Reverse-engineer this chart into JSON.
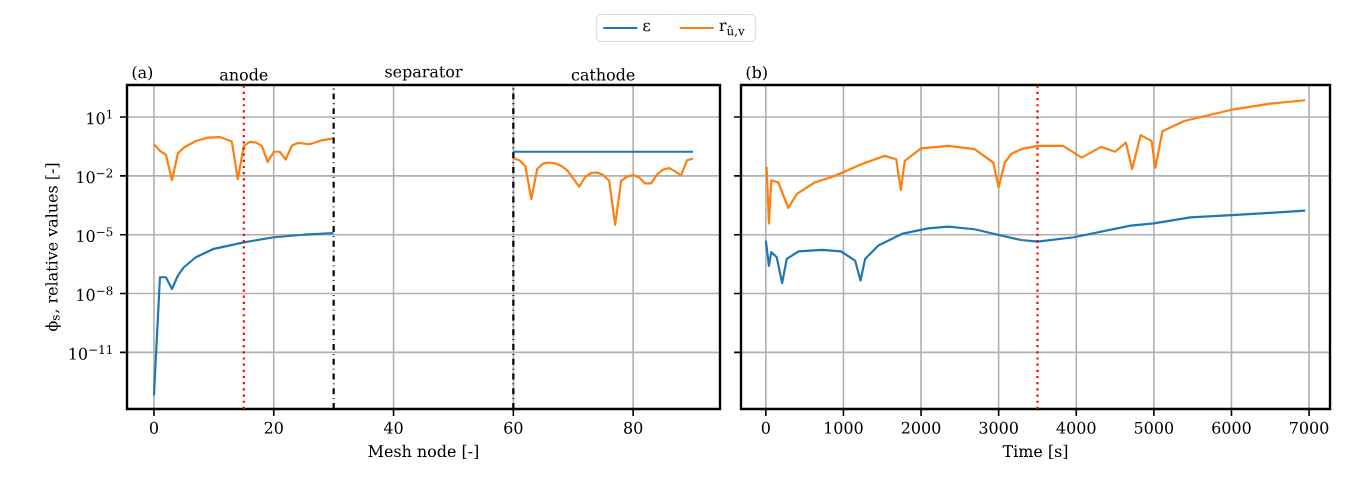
{
  "chart_data": [
    {
      "type": "line",
      "title": "(a)",
      "xlabel": "Mesh node [-]",
      "ylabel": "ϕ$_{s}$, relative values [-]",
      "log": "y",
      "grid": true,
      "legend": "top",
      "xlim": [
        -4.5,
        94.5
      ],
      "ylim": [
        1.3e-14,
        430
      ],
      "xticks": [
        0,
        20,
        40,
        60,
        80
      ],
      "yticks": [
        {
          "value": 10,
          "label": "10$^{1}$"
        },
        {
          "value": 0.01,
          "label": "10$^{−2}$"
        },
        {
          "value": 1e-05,
          "label": "10$^{−5}$"
        },
        {
          "value": 1e-08,
          "label": "10$^{−8}$"
        },
        {
          "value": 1e-11,
          "label": "10$^{−11}$"
        }
      ],
      "ref_lines": [
        {
          "axis": "x",
          "value": 15,
          "color": "#ff0000",
          "line_style": "dotted"
        },
        {
          "axis": "x",
          "value": 30,
          "color": "#000000",
          "line_style": "dashdot"
        },
        {
          "axis": "x",
          "value": 60,
          "color": "#000000",
          "line_style": "dashdot"
        }
      ],
      "annotations": [
        "anode",
        "separator",
        "cathode"
      ],
      "series": [
        {
          "name": "ε",
          "color": "#1f77b4",
          "x": [
            0,
            1,
            2,
            3,
            4,
            5,
            7,
            10,
            15,
            20,
            25,
            30,
            45,
            60,
            90
          ],
          "values": [
            6.3e-14,
            6.8e-08,
            6.8e-08,
            1.7e-08,
            8.3e-08,
            2.2e-07,
            7.1e-07,
            1.9e-06,
            4.1e-06,
            7.4e-06,
            1e-05,
            1.2e-05,
            null,
            0.17,
            0.17
          ]
        },
        {
          "name": "r$_{û,v}$",
          "color": "#ff7f0e",
          "x": [
            0,
            1,
            2,
            3,
            4,
            5,
            7,
            9,
            11,
            13,
            14,
            15,
            16,
            17,
            18,
            19,
            20,
            21,
            22,
            23,
            24,
            26,
            28,
            30,
            45,
            60,
            61,
            62,
            63,
            64,
            65,
            66,
            67,
            68,
            69,
            70,
            71,
            72,
            73,
            74,
            75,
            76,
            77,
            78,
            79,
            80,
            81,
            82,
            83,
            84,
            85,
            86,
            87,
            88,
            89,
            90
          ],
          "values": [
            0.41,
            0.19,
            0.12,
            0.006,
            0.14,
            0.28,
            0.6,
            0.89,
            0.95,
            0.56,
            0.0068,
            0.34,
            0.54,
            0.51,
            0.34,
            0.051,
            0.17,
            0.17,
            0.068,
            0.34,
            0.48,
            0.41,
            0.65,
            0.81,
            null,
            0.079,
            0.063,
            0.032,
            0.00065,
            0.023,
            0.043,
            0.048,
            0.043,
            0.032,
            0.019,
            0.0072,
            0.0028,
            0.0089,
            0.014,
            0.015,
            0.011,
            0.0056,
            3.2e-05,
            0.0056,
            0.0093,
            0.011,
            0.0083,
            0.0041,
            0.0041,
            0.012,
            0.021,
            0.025,
            0.017,
            0.0105,
            0.063,
            0.076
          ]
        }
      ]
    },
    {
      "type": "line",
      "title": "(b)",
      "xlabel": "Time [s]",
      "log": "y",
      "grid": true,
      "tick_labels": "x",
      "xlim": [
        -320,
        7270
      ],
      "ylim": [
        1.3e-14,
        430
      ],
      "xticks": [
        0,
        1000,
        2000,
        3000,
        4000,
        5000,
        6000,
        7000
      ],
      "yticks": [
        {
          "value": 10,
          "label": null
        },
        {
          "value": 0.01,
          "label": null
        },
        {
          "value": 1e-05,
          "label": null
        },
        {
          "value": 1e-08,
          "label": null
        },
        {
          "value": 1e-11,
          "label": null
        }
      ],
      "ref_lines": [
        {
          "axis": "x",
          "value": 3500,
          "color": "#ff0000",
          "line_style": "dotted"
        }
      ],
      "series": [
        {
          "color": "#1f77b4",
          "x": [
            0,
            40,
            70,
            140,
            210,
            270,
            420,
            720,
            970,
            1150,
            1220,
            1280,
            1450,
            1750,
            2090,
            2350,
            2690,
            2990,
            3290,
            3500,
            3970,
            4700,
            5000,
            5470,
            6000,
            6500,
            6950
          ],
          "values": [
            5e-06,
            2.6e-07,
            1.3e-06,
            7.1e-07,
            3.4e-08,
            5.9e-07,
            1.4e-06,
            1.7e-06,
            1.4e-06,
            4.8e-07,
            4.6e-08,
            5.9e-07,
            2.8e-06,
            1.1e-05,
            2.1e-05,
            2.6e-05,
            1.9e-05,
            1e-05,
            5.4e-06,
            4.4e-06,
            7.4e-06,
            2.9e-05,
            3.8e-05,
            7.6e-05,
            0.0001,
            0.00013,
            0.00017
          ]
        },
        {
          "color": "#ff7f0e",
          "x": [
            10,
            40,
            70,
            160,
            290,
            400,
            630,
            890,
            1230,
            1530,
            1680,
            1740,
            1790,
            2000,
            2350,
            2690,
            2930,
            3000,
            3080,
            3160,
            3290,
            3500,
            3830,
            4070,
            4320,
            4500,
            4640,
            4720,
            4830,
            4970,
            5020,
            5110,
            5390,
            5990,
            6500,
            6950
          ],
          "values": [
            0.029,
            3.8e-05,
            0.006,
            0.0046,
            0.00023,
            0.0012,
            0.0046,
            0.01,
            0.039,
            0.105,
            0.071,
            0.0019,
            0.058,
            0.25,
            0.34,
            0.23,
            0.048,
            0.0026,
            0.048,
            0.13,
            0.23,
            0.34,
            0.34,
            0.085,
            0.3,
            0.17,
            0.5,
            0.022,
            1.2,
            0.6,
            0.026,
            1.9,
            6.3,
            23,
            48,
            72
          ]
        }
      ]
    }
  ]
}
